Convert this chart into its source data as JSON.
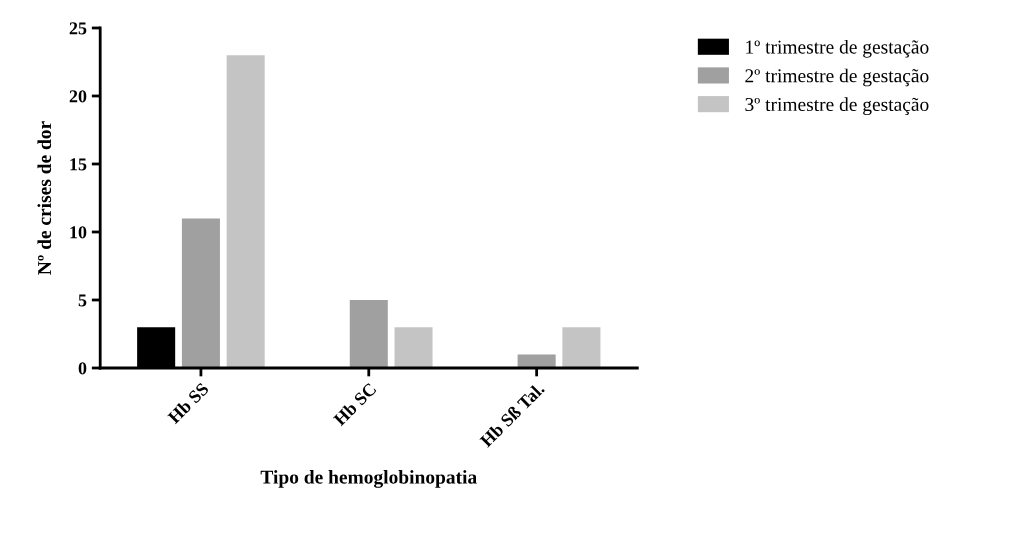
{
  "chart_data": {
    "type": "bar",
    "xlabel": "Tipo de hemoglobinopatia",
    "ylabel": "Nº de crises de dor",
    "categories": [
      "Hb SS",
      "Hb SC",
      "Hb Sß Tal."
    ],
    "series": [
      {
        "name": "1º trimestre de gestação",
        "color": "#000000",
        "values": [
          3,
          0,
          0
        ]
      },
      {
        "name": "2º trimestre de gestação",
        "color": "#a0a0a0",
        "values": [
          11,
          5,
          1
        ]
      },
      {
        "name": "3º trimestre de gestação",
        "color": "#c4c4c4",
        "values": [
          23,
          3,
          3
        ]
      }
    ],
    "ylim": [
      0,
      25
    ],
    "yticks": [
      0,
      5,
      10,
      15,
      20,
      25
    ],
    "grid": false,
    "legend": "top right"
  }
}
